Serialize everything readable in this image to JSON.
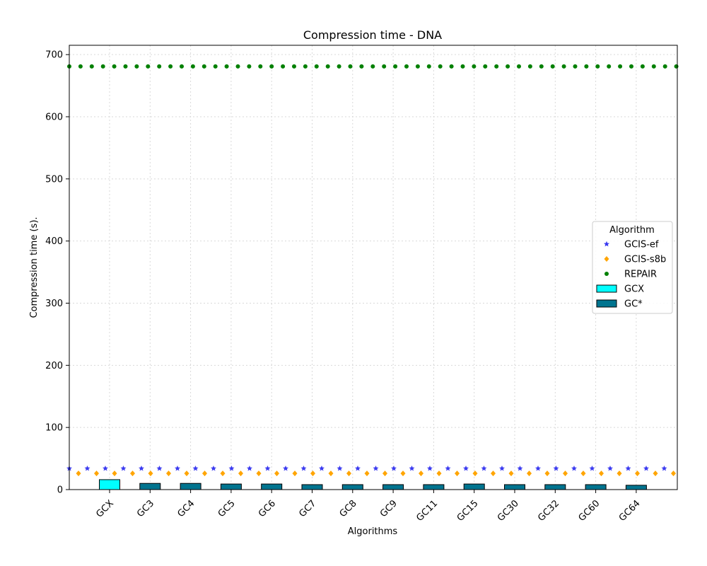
{
  "chart_data": {
    "type": "bar",
    "title": "Compression time -  DNA",
    "xlabel": "Algorithms",
    "ylabel": "Compression time (s).",
    "ylim": [
      0,
      715
    ],
    "yticks": [
      0,
      100,
      200,
      300,
      400,
      500,
      600,
      700
    ],
    "grid": true,
    "legend_placement": "center-right",
    "legend_title": "Algorithm",
    "categories": [
      "GCX",
      "GC3",
      "GC4",
      "GC5",
      "GC6",
      "GC7",
      "GC8",
      "GC9",
      "GC11",
      "GC15",
      "GC30",
      "GC32",
      "GC60",
      "GC64"
    ],
    "bars": [
      {
        "name": "GCX",
        "color": "#00ffff",
        "categories": [
          "GCX"
        ],
        "values": [
          16
        ]
      },
      {
        "name": "GC*",
        "color": "#00748f",
        "categories": [
          "GC3",
          "GC4",
          "GC5",
          "GC6",
          "GC7",
          "GC8",
          "GC9",
          "GC11",
          "GC15",
          "GC30",
          "GC32",
          "GC60",
          "GC64"
        ],
        "values": [
          10,
          10,
          9,
          9,
          8,
          8,
          8,
          8,
          9,
          8,
          8,
          8,
          7
        ]
      }
    ],
    "reference_lines": [
      {
        "name": "GCIS-ef",
        "value": 34,
        "color": "#3b3bf0",
        "marker": "star"
      },
      {
        "name": "GCIS-s8b",
        "value": 26,
        "color": "#ffa500",
        "marker": "diamond"
      },
      {
        "name": "REPAIR",
        "value": 681,
        "color": "#008000",
        "marker": "circle"
      }
    ]
  }
}
